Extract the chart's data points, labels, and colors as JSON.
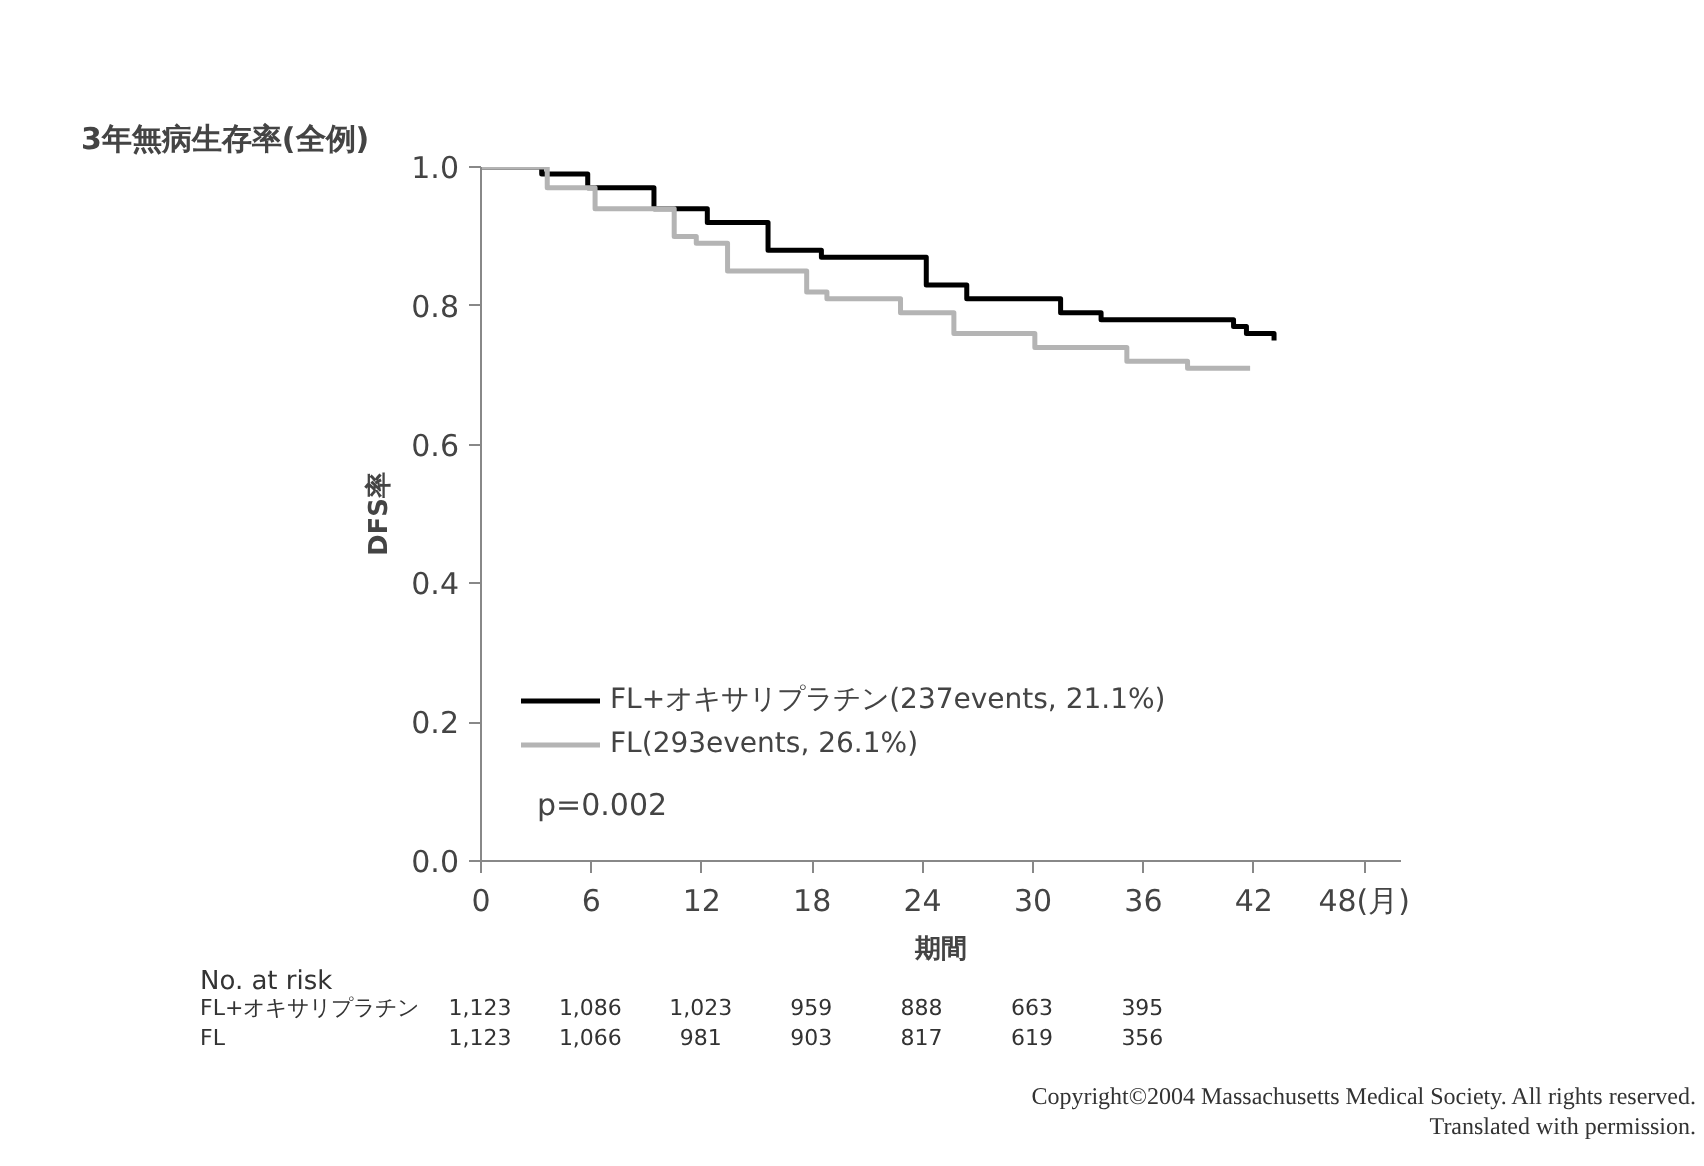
{
  "chart_data": {
    "type": "step",
    "title": "3年無病生存率(全例)",
    "xlabel": "期間",
    "ylabel": "DFS率",
    "xlim": [
      0,
      50
    ],
    "ylim": [
      0,
      1.0
    ],
    "xticks": [
      0,
      6,
      12,
      18,
      24,
      30,
      36,
      42,
      {
        "value": 48,
        "label": "48(月)"
      }
    ],
    "yticks": [
      {
        "value": 0,
        "label": "0.0"
      },
      {
        "value": 0.2,
        "label": "0.2"
      },
      {
        "value": 0.4,
        "label": "0.4"
      },
      {
        "value": 0.6,
        "label": "0.6"
      },
      {
        "value": 0.8,
        "label": "0.8"
      },
      {
        "value": 1.0,
        "label": "1.0"
      }
    ],
    "grid": false,
    "legend": "bottom left",
    "marker": "none",
    "line_style": "solid",
    "series": [
      {
        "name": "FL+オキサリプラチン(237events, 21.1%)",
        "color": "#000000",
        "x": [
          0,
          3.3,
          5.8,
          9.4,
          12.3,
          15.6,
          18.5,
          24.2,
          26.4,
          31.5,
          33.7,
          40.9,
          41.6,
          43.1
        ],
        "values": [
          1.0,
          0.99,
          0.97,
          0.94,
          0.92,
          0.88,
          0.87,
          0.83,
          0.81,
          0.79,
          0.78,
          0.77,
          0.76,
          0.75
        ]
      },
      {
        "name": "FL(293events, 26.1%)",
        "color": "#b4b4b4",
        "x": [
          0,
          3.6,
          6.2,
          10.5,
          11.7,
          13.4,
          17.7,
          18.8,
          22.8,
          25.7,
          30.1,
          35.1,
          38.4,
          41.8
        ],
        "values": [
          1.0,
          0.97,
          0.94,
          0.9,
          0.89,
          0.85,
          0.82,
          0.81,
          0.79,
          0.76,
          0.74,
          0.72,
          0.71,
          0.71
        ]
      }
    ],
    "annotations": [
      "p=0.002",
      "No. at risk",
      "FL+オキサリプラチン",
      "1,123",
      "1,086",
      "1,023",
      "959",
      "888",
      "663",
      "395",
      "FL",
      "1,123",
      "1,066",
      "981",
      "903",
      "817",
      "619",
      "356",
      "Copyright©2004 Massachusetts Medical Society. All rights reserved.",
      "Translated with permission."
    ]
  }
}
